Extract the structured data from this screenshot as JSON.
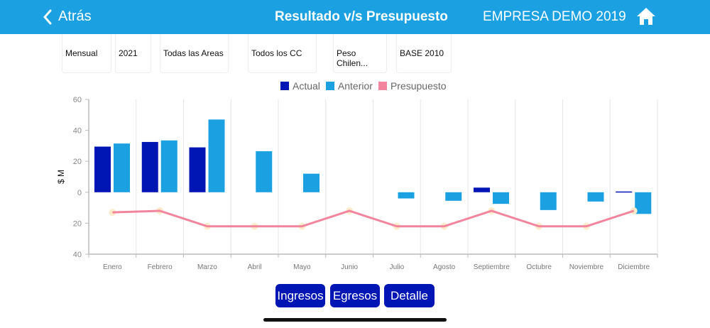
{
  "header": {
    "back_label": "Atrás",
    "title": "Resultado v/s Presupuesto",
    "company": "EMPRESA DEMO 2019"
  },
  "filters": [
    "Mensual",
    "2021",
    "Todas las Areas",
    "Todos los CC",
    "Peso Chilen...",
    "BASE 2010"
  ],
  "buttons": {
    "ingresos": "Ingresos",
    "egresos": "Egresos",
    "detalle": "Detalle"
  },
  "chart_data": {
    "type": "bar",
    "ylabel": "$ M",
    "ylim": [
      -40,
      60
    ],
    "yticks": [
      60,
      40,
      20,
      0,
      -20,
      -40
    ],
    "ytick_labels": [
      "60",
      "40",
      "20",
      "0",
      "20",
      "40"
    ],
    "grid": "vertical",
    "legend_position": "top-center",
    "categories": [
      "Enero",
      "Febrero",
      "Marzo",
      "Abril",
      "Mayo",
      "Junio",
      "Julio",
      "Agosto",
      "Septiembre",
      "Octubre",
      "Noviembre",
      "Diciembre"
    ],
    "series": [
      {
        "name": "Actual",
        "type": "bar",
        "color": "#0016b4",
        "values": [
          29.5,
          32.5,
          29,
          0,
          0,
          0,
          0,
          0,
          3,
          0,
          0,
          0.5
        ]
      },
      {
        "name": "Anterior",
        "type": "bar",
        "color": "#1ba1e2",
        "values": [
          31.5,
          33.5,
          47,
          26.5,
          12,
          0,
          -4,
          -5.5,
          -7.5,
          -11.5,
          -6,
          -14
        ]
      },
      {
        "name": "Presupuesto",
        "type": "line",
        "color": "#f2849e",
        "values": [
          -13,
          -12,
          -22,
          -22,
          -22,
          -12,
          -22,
          -22,
          -12,
          -22,
          -22,
          -12
        ]
      }
    ]
  }
}
